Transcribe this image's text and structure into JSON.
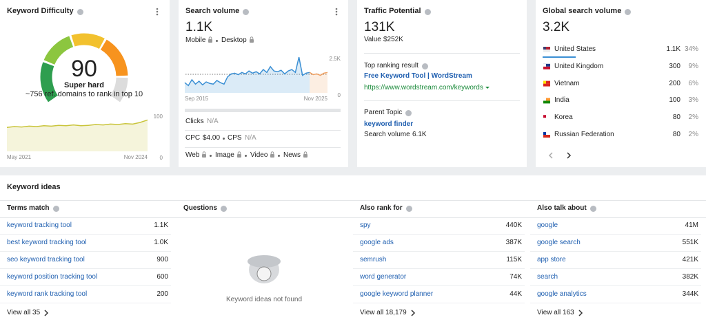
{
  "keyword_difficulty": {
    "title": "Keyword Difficulty",
    "score": "90",
    "level": "Super hard",
    "note": "~756 ref. domains to rank in top 10",
    "chart": {
      "type": "area",
      "color": "#c9c43a",
      "x_labels": [
        "May 2021",
        "Nov 2024"
      ],
      "ylim": [
        0,
        100
      ],
      "yticks": [
        100,
        0
      ],
      "values": [
        58,
        60,
        59,
        61,
        60,
        62,
        61,
        63,
        62,
        64,
        62,
        63,
        65,
        64,
        66,
        65,
        67,
        66,
        70,
        76
      ]
    }
  },
  "search_volume": {
    "title": "Search volume",
    "value": "1.1K",
    "devices": [
      "Mobile",
      "Desktop"
    ],
    "chart": {
      "type": "area",
      "x_labels": [
        "Sep 2015",
        "Nov 2025"
      ],
      "ylim": [
        0,
        2500
      ],
      "yticks": [
        {
          "value": 2500,
          "label": "2.5K"
        },
        0
      ],
      "series": [
        {
          "color": "#3a8fd4",
          "values": [
            700,
            500,
            900,
            600,
            800,
            550,
            750,
            650,
            600,
            850,
            700,
            600,
            1100,
            1300,
            1350,
            1250,
            1400,
            1300,
            1500,
            1350,
            1450,
            1300,
            1600,
            1400,
            1800,
            1500,
            1450,
            1550,
            1300,
            1500,
            1600,
            1400,
            2450,
            1200,
            1350,
            1400,
            null,
            null,
            null,
            null,
            null
          ]
        },
        {
          "color": "#f0a060",
          "values": [
            null,
            null,
            null,
            null,
            null,
            null,
            null,
            null,
            null,
            null,
            null,
            null,
            null,
            null,
            null,
            null,
            null,
            null,
            null,
            null,
            null,
            null,
            null,
            null,
            null,
            null,
            null,
            null,
            null,
            null,
            null,
            null,
            null,
            null,
            null,
            1400,
            1250,
            1300,
            1200,
            1350,
            1400
          ]
        }
      ]
    },
    "clicks": {
      "label": "Clicks",
      "value": "N/A"
    },
    "cpc": {
      "label": "CPC",
      "value": "$4.00"
    },
    "cps": {
      "label": "CPS",
      "value": "N/A"
    },
    "serp_features": [
      "Web",
      "Image",
      "Video",
      "News"
    ]
  },
  "traffic_potential": {
    "title": "Traffic Potential",
    "value": "131K",
    "value_label": "Value",
    "value_amount": "$252K",
    "top_result_label": "Top ranking result",
    "top_result_title": "Free Keyword Tool | WordStream",
    "top_result_url": "https://www.wordstream.com/keywords",
    "parent_topic_label": "Parent Topic",
    "parent_topic": "keyword finder",
    "parent_volume_label": "Search volume",
    "parent_volume": "6.1K"
  },
  "global_volume": {
    "title": "Global search volume",
    "value": "3.2K",
    "countries": [
      {
        "name": "United States",
        "volume": "1.1K",
        "share": "34%"
      },
      {
        "name": "United Kingdom",
        "volume": "300",
        "share": "9%"
      },
      {
        "name": "Vietnam",
        "volume": "200",
        "share": "6%"
      },
      {
        "name": "India",
        "volume": "100",
        "share": "3%"
      },
      {
        "name": "Korea",
        "volume": "80",
        "share": "2%"
      },
      {
        "name": "Russian Federation",
        "volume": "80",
        "share": "2%"
      }
    ]
  },
  "keyword_ideas": {
    "title": "Keyword ideas",
    "columns": [
      {
        "title": "Terms match",
        "view_all": "View all 35",
        "rows": [
          {
            "keyword": "keyword tracking tool",
            "volume": "1.1K"
          },
          {
            "keyword": "best keyword tracking tool",
            "volume": "1.0K"
          },
          {
            "keyword": "seo keyword tracking tool",
            "volume": "900"
          },
          {
            "keyword": "keyword position tracking tool",
            "volume": "600"
          },
          {
            "keyword": "keyword rank tracking tool",
            "volume": "200"
          }
        ]
      },
      {
        "title": "Questions",
        "empty": "Keyword ideas not found"
      },
      {
        "title": "Also rank for",
        "view_all": "View all 18,179",
        "rows": [
          {
            "keyword": "spy",
            "volume": "440K"
          },
          {
            "keyword": "google ads",
            "volume": "387K"
          },
          {
            "keyword": "semrush",
            "volume": "115K"
          },
          {
            "keyword": "word generator",
            "volume": "74K"
          },
          {
            "keyword": "google keyword planner",
            "volume": "44K"
          }
        ]
      },
      {
        "title": "Also talk about",
        "view_all": "View all 163",
        "rows": [
          {
            "keyword": "google",
            "volume": "41M"
          },
          {
            "keyword": "google search",
            "volume": "551K"
          },
          {
            "keyword": "app store",
            "volume": "421K"
          },
          {
            "keyword": "search",
            "volume": "382K"
          },
          {
            "keyword": "google analytics",
            "volume": "344K"
          }
        ]
      }
    ]
  }
}
